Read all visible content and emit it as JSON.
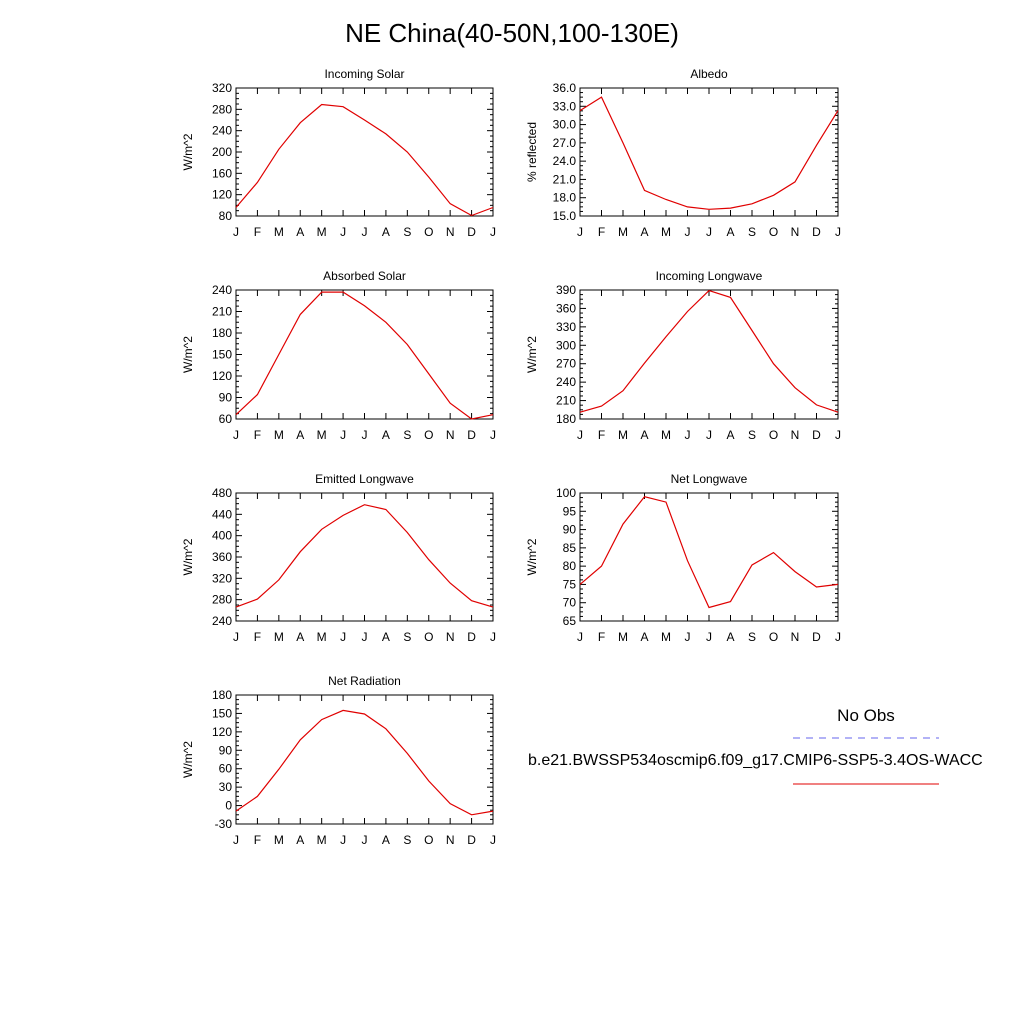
{
  "title": "NE China(40-50N,100-130E)",
  "months": [
    "J",
    "F",
    "M",
    "A",
    "M",
    "J",
    "J",
    "A",
    "S",
    "O",
    "N",
    "D",
    "J"
  ],
  "colors": {
    "model": "#e00000",
    "obs": "#6666ee",
    "axis": "#000000"
  },
  "legend": {
    "obs_label": "No Obs",
    "model_label": "b.e21.BWSSP534oscmip6.f09_g17.CMIP6-SSP5-3.4OS-WACC"
  },
  "chart_data": [
    {
      "type": "line",
      "title": "Incoming Solar",
      "xlabel": "",
      "ylabel": "W/m^2",
      "ylim": [
        80,
        320
      ],
      "yticks": [
        "80",
        "120",
        "160",
        "200",
        "240",
        "280",
        "320"
      ],
      "categories": [
        "J",
        "F",
        "M",
        "A",
        "M",
        "J",
        "J",
        "A",
        "S",
        "O",
        "N",
        "D",
        "J"
      ],
      "values": [
        96,
        143,
        205,
        255,
        289,
        285,
        260,
        234,
        200,
        153,
        103,
        81,
        96
      ]
    },
    {
      "type": "line",
      "title": "Albedo",
      "xlabel": "",
      "ylabel": "% reflected",
      "ylim": [
        15,
        36
      ],
      "yticks": [
        "15.0",
        "18.0",
        "21.0",
        "24.0",
        "27.0",
        "30.0",
        "33.0",
        "36.0"
      ],
      "categories": [
        "J",
        "F",
        "M",
        "A",
        "M",
        "J",
        "J",
        "A",
        "S",
        "O",
        "N",
        "D",
        "J"
      ],
      "values": [
        32.3,
        34.5,
        27.0,
        19.2,
        17.7,
        16.5,
        16.1,
        16.3,
        17.0,
        18.4,
        20.6,
        26.6,
        32.3
      ]
    },
    {
      "type": "line",
      "title": "Absorbed Solar",
      "xlabel": "",
      "ylabel": "W/m^2",
      "ylim": [
        60,
        240
      ],
      "yticks": [
        "60",
        "90",
        "120",
        "150",
        "180",
        "210",
        "240"
      ],
      "categories": [
        "J",
        "F",
        "M",
        "A",
        "M",
        "J",
        "J",
        "A",
        "S",
        "O",
        "N",
        "D",
        "J"
      ],
      "values": [
        66,
        94,
        150,
        206,
        237,
        237,
        218,
        195,
        164,
        123,
        82,
        60,
        66
      ]
    },
    {
      "type": "line",
      "title": "Incoming Longwave",
      "xlabel": "",
      "ylabel": "W/m^2",
      "ylim": [
        180,
        390
      ],
      "yticks": [
        "180",
        "210",
        "240",
        "270",
        "300",
        "330",
        "360",
        "390"
      ],
      "categories": [
        "J",
        "F",
        "M",
        "A",
        "M",
        "J",
        "J",
        "A",
        "S",
        "O",
        "N",
        "D",
        "J"
      ],
      "values": [
        191,
        201,
        226,
        271,
        314,
        355,
        389,
        378,
        324,
        270,
        231,
        203,
        191
      ]
    },
    {
      "type": "line",
      "title": "Emitted Longwave",
      "xlabel": "",
      "ylabel": "W/m^2",
      "ylim": [
        240,
        480
      ],
      "yticks": [
        "240",
        "280",
        "320",
        "360",
        "400",
        "440",
        "480"
      ],
      "categories": [
        "J",
        "F",
        "M",
        "A",
        "M",
        "J",
        "J",
        "A",
        "S",
        "O",
        "N",
        "D",
        "J"
      ],
      "values": [
        266,
        281,
        317,
        370,
        412,
        438,
        458,
        449,
        406,
        355,
        311,
        278,
        266
      ]
    },
    {
      "type": "line",
      "title": "Net Longwave",
      "xlabel": "",
      "ylabel": "W/m^2",
      "ylim": [
        65,
        100
      ],
      "yticks": [
        "65",
        "70",
        "75",
        "80",
        "85",
        "90",
        "95",
        "100"
      ],
      "categories": [
        "J",
        "F",
        "M",
        "A",
        "M",
        "J",
        "J",
        "A",
        "S",
        "O",
        "N",
        "D",
        "J"
      ],
      "values": [
        75.0,
        80.0,
        91.5,
        99.0,
        97.5,
        81.5,
        68.7,
        70.3,
        80.3,
        83.7,
        78.5,
        74.3,
        75.0
      ]
    },
    {
      "type": "line",
      "title": "Net Radiation",
      "xlabel": "",
      "ylabel": "W/m^2",
      "ylim": [
        -30,
        180
      ],
      "yticks": [
        "-30",
        "0",
        "30",
        "60",
        "90",
        "120",
        "150",
        "180"
      ],
      "categories": [
        "J",
        "F",
        "M",
        "A",
        "M",
        "J",
        "J",
        "A",
        "S",
        "O",
        "N",
        "D",
        "J"
      ],
      "values": [
        -9,
        15,
        59,
        107,
        140,
        155,
        149,
        125,
        85,
        40,
        3,
        -15,
        -9
      ]
    }
  ]
}
